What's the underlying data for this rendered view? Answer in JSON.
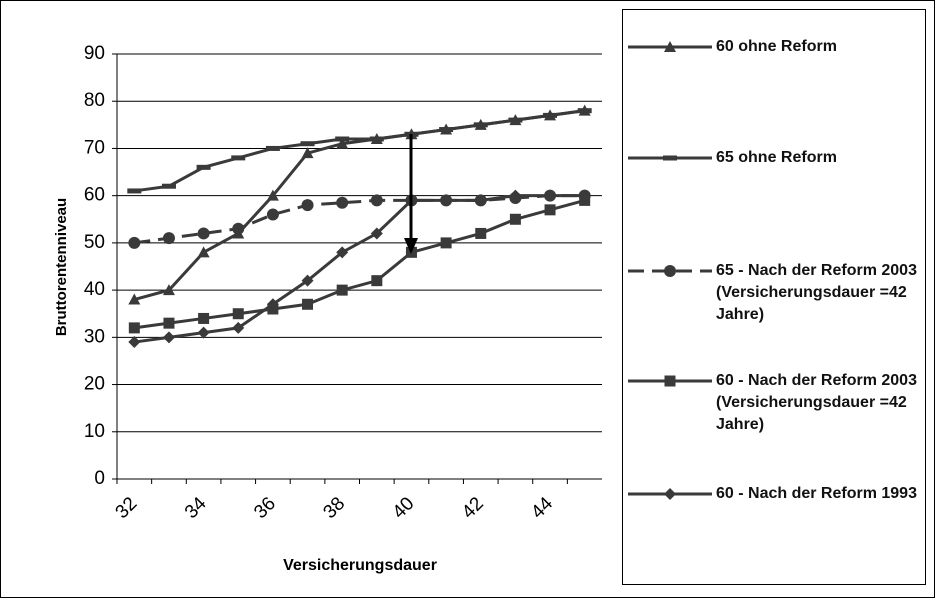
{
  "chart_data": {
    "type": "line",
    "x_label": "Versicherungsdauer",
    "y_label": "Bruttorentenniveau",
    "categories": [
      "32",
      null,
      "34",
      null,
      "36",
      null,
      "38",
      null,
      "40",
      null,
      "42",
      null,
      "44",
      null
    ],
    "ylim": [
      0,
      90
    ],
    "yticks": [
      0,
      10,
      20,
      30,
      40,
      50,
      60,
      70,
      80,
      90
    ],
    "grid": true,
    "series": [
      {
        "name": "60 ohne Reform",
        "color": "#3a3a3a",
        "marker": "triangle",
        "values": [
          38,
          40,
          48,
          52,
          60,
          69,
          71,
          72,
          73,
          74,
          75,
          76,
          77,
          78
        ]
      },
      {
        "name": "65 ohne Reform",
        "color": "#3a3a3a",
        "marker": "dash",
        "values": [
          61,
          62,
          66,
          68,
          70,
          71,
          72,
          72,
          73,
          74,
          75,
          76,
          77,
          78
        ]
      },
      {
        "name": "65  - Nach der Reform 2003 (Versicherungsdauer =42 Jahre)",
        "color": "#3a3a3a",
        "marker": "circle",
        "dashed": true,
        "values": [
          50,
          51,
          52,
          53,
          56,
          58,
          58.5,
          59,
          59,
          59,
          59,
          59.5,
          60,
          60
        ]
      },
      {
        "name": "60  - Nach der Reform 2003 (Versicherungsdauer =42 Jahre)",
        "color": "#3a3a3a",
        "marker": "square",
        "values": [
          32,
          33,
          34,
          35,
          36,
          37,
          40,
          42,
          48,
          50,
          52,
          55,
          57,
          59
        ]
      },
      {
        "name": "60 - Nach der Reform 1993",
        "color": "#3a3a3a",
        "marker": "diamond",
        "values": [
          29,
          30,
          31,
          32,
          37,
          42,
          48,
          52,
          59,
          59,
          59,
          60,
          60,
          60
        ]
      }
    ]
  }
}
